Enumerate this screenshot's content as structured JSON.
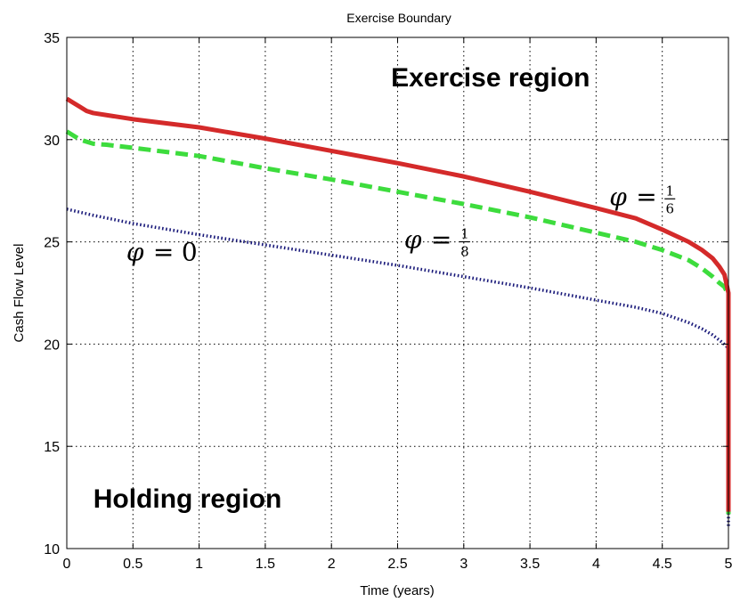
{
  "chart_data": {
    "type": "line",
    "title": "Exercise Boundary",
    "xlabel": "Time (years)",
    "ylabel": "Cash Flow Level",
    "xlim": [
      0,
      5
    ],
    "ylim": [
      10,
      35
    ],
    "grid": true,
    "x_ticks": [
      "0",
      "0.5",
      "1",
      "1.5",
      "2",
      "2.5",
      "3",
      "3.5",
      "4",
      "4.5",
      "5"
    ],
    "y_ticks": [
      "10",
      "15",
      "20",
      "25",
      "30",
      "35"
    ],
    "series": [
      {
        "label": "φ = 1/6",
        "color": "#d42a2a",
        "style": "solid",
        "x": [
          0,
          0.05,
          0.1,
          0.15,
          0.2,
          0.3,
          0.5,
          1.0,
          1.5,
          2.0,
          2.5,
          3.0,
          3.5,
          4.0,
          4.3,
          4.5,
          4.7,
          4.8,
          4.88,
          4.93,
          4.97,
          5.0,
          5.0
        ],
        "y": [
          32.0,
          31.8,
          31.6,
          31.4,
          31.3,
          31.2,
          31.0,
          30.6,
          30.05,
          29.45,
          28.85,
          28.2,
          27.45,
          26.65,
          26.15,
          25.6,
          25.0,
          24.6,
          24.2,
          23.8,
          23.4,
          22.5,
          11.8
        ]
      },
      {
        "label": "φ = 1/8",
        "color": "#3ddc3d",
        "style": "dashed",
        "x": [
          0,
          0.05,
          0.1,
          0.15,
          0.2,
          0.3,
          0.5,
          1.0,
          1.5,
          2.0,
          2.5,
          3.0,
          3.5,
          4.0,
          4.3,
          4.5,
          4.7,
          4.8,
          4.88,
          4.93,
          4.97,
          5.0,
          5.0
        ],
        "y": [
          30.4,
          30.2,
          30.0,
          29.9,
          29.8,
          29.75,
          29.6,
          29.2,
          28.6,
          28.05,
          27.45,
          26.85,
          26.2,
          25.45,
          25.0,
          24.6,
          24.1,
          23.7,
          23.3,
          23.0,
          22.8,
          22.4,
          11.5
        ]
      },
      {
        "label": "φ = 0",
        "color": "#1a1a7a",
        "style": "dotted",
        "x": [
          0,
          0.2,
          0.5,
          1.0,
          1.5,
          2.0,
          2.5,
          3.0,
          3.5,
          4.0,
          4.3,
          4.5,
          4.7,
          4.8,
          4.88,
          4.95,
          5.0,
          5.0
        ],
        "y": [
          26.6,
          26.3,
          25.9,
          25.35,
          24.85,
          24.35,
          23.85,
          23.3,
          22.75,
          22.15,
          21.8,
          21.5,
          21.05,
          20.75,
          20.45,
          20.1,
          19.8,
          11.0
        ]
      }
    ],
    "annotations": [
      {
        "text": "Exercise region",
        "x": 2.45,
        "y": 32.6
      },
      {
        "text": "Holding region",
        "x": 0.2,
        "y": 12.0
      }
    ],
    "curve_labels": [
      {
        "symbol": "φ",
        "equals": "=",
        "numerator": "1",
        "denominator": "6",
        "x": 4.1,
        "y": 26.8,
        "series": 0
      },
      {
        "symbol": "φ",
        "equals": "=",
        "numerator": "1",
        "denominator": "8",
        "x": 2.55,
        "y": 24.7,
        "series": 1
      },
      {
        "symbol": "φ",
        "equals": "=",
        "value": "0",
        "x": 0.45,
        "y": 24.1,
        "series": 2
      }
    ]
  }
}
